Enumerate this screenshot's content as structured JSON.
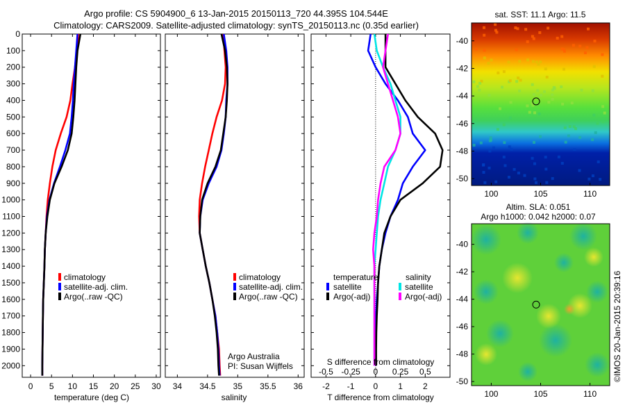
{
  "title_line1": "Argo profile: CS 5904900_6 13-Jan-2015 20150113_720 44.395S 104.544E",
  "title_line2": "Climatology: CARS2009. Satellite-adjusted climatology: synTS_20150113.nc (0.35d earlier)",
  "credit": "©IMOS 20-Jan-2015 20:39:16",
  "chart_data": [
    {
      "type": "line",
      "panel": "temperature",
      "xlabel": "temperature (deg C)",
      "ylabel": "",
      "xlim": [
        -2,
        31
      ],
      "ylim": [
        2070,
        0
      ],
      "xticks": [
        0,
        5,
        10,
        15,
        20,
        25,
        30
      ],
      "yticks": [
        0,
        100,
        200,
        300,
        400,
        500,
        600,
        700,
        800,
        900,
        1000,
        1100,
        1200,
        1300,
        1400,
        1500,
        1600,
        1700,
        1800,
        1900,
        2000
      ],
      "legend": [
        "climatology",
        "satellite-adj. clim.",
        "Argo(..raw -QC)"
      ],
      "series": [
        {
          "name": "climatology",
          "color": "#ff0000",
          "x": [
            11.4,
            11.0,
            10.6,
            10.0,
            9.5,
            8.6,
            7.2,
            6.0,
            5.2,
            4.6,
            4.1,
            3.8,
            3.6,
            3.4,
            3.3,
            3.15,
            3.0,
            2.95,
            2.9,
            2.85,
            2.8,
            2.8
          ],
          "y": [
            0,
            100,
            200,
            300,
            400,
            500,
            600,
            700,
            800,
            900,
            1000,
            1100,
            1200,
            1300,
            1400,
            1500,
            1600,
            1700,
            1800,
            1900,
            2000,
            2060
          ]
        },
        {
          "name": "satellite-adj. clim.",
          "color": "#0000ff",
          "x": [
            11.2,
            10.9,
            10.6,
            10.3,
            10.1,
            9.8,
            9.4,
            8.3,
            7.0,
            5.6,
            4.5,
            3.9,
            3.6,
            3.4,
            3.3,
            3.15,
            3.0,
            2.95,
            2.9,
            2.85,
            2.8,
            2.8
          ],
          "y": [
            0,
            100,
            200,
            300,
            400,
            500,
            600,
            700,
            800,
            900,
            1000,
            1100,
            1200,
            1300,
            1400,
            1500,
            1600,
            1700,
            1800,
            1900,
            2000,
            2060
          ]
        },
        {
          "name": "Argo(..raw -QC)",
          "color": "#000000",
          "x": [
            11.9,
            11.2,
            10.9,
            10.7,
            10.5,
            10.2,
            9.8,
            8.9,
            7.4,
            5.7,
            4.6,
            4.0,
            3.6,
            3.4,
            3.3,
            3.15,
            3.0,
            2.95,
            2.9,
            2.85,
            2.8,
            2.8
          ],
          "y": [
            0,
            100,
            200,
            300,
            400,
            500,
            600,
            700,
            800,
            900,
            1000,
            1100,
            1200,
            1300,
            1400,
            1500,
            1600,
            1700,
            1800,
            1900,
            2000,
            2060
          ]
        }
      ]
    },
    {
      "type": "line",
      "panel": "salinity",
      "xlabel": "salinity",
      "ylabel": "",
      "xlim": [
        33.8,
        36.1
      ],
      "ylim": [
        2070,
        0
      ],
      "xticks": [
        34,
        34.5,
        35,
        35.5,
        36
      ],
      "legend": [
        "climatology",
        "satellite-adj. clim.",
        "Argo(..raw -QC)"
      ],
      "annotation_line1": "Argo Australia",
      "annotation_line2": "PI: Susan Wijffels",
      "series": [
        {
          "name": "climatology",
          "color": "#ff0000",
          "x": [
            34.76,
            34.78,
            34.8,
            34.79,
            34.74,
            34.65,
            34.58,
            34.52,
            34.46,
            34.41,
            34.37,
            34.36,
            34.37,
            34.42,
            34.47,
            34.53,
            34.58,
            34.63,
            34.66,
            34.69,
            34.7,
            34.71
          ],
          "y": [
            0,
            100,
            200,
            300,
            400,
            500,
            600,
            700,
            800,
            900,
            1000,
            1100,
            1200,
            1300,
            1400,
            1500,
            1600,
            1700,
            1800,
            1900,
            2000,
            2060
          ]
        },
        {
          "name": "satellite-adj. clim.",
          "color": "#0000ff",
          "x": [
            34.77,
            34.81,
            34.83,
            34.83,
            34.81,
            34.8,
            34.77,
            34.73,
            34.65,
            34.52,
            34.42,
            34.38,
            34.37,
            34.42,
            34.47,
            34.53,
            34.58,
            34.63,
            34.66,
            34.68,
            34.69,
            34.7
          ],
          "y": [
            0,
            100,
            200,
            300,
            400,
            500,
            600,
            700,
            800,
            900,
            1000,
            1100,
            1200,
            1300,
            1400,
            1500,
            1600,
            1700,
            1800,
            1900,
            2000,
            2060
          ]
        },
        {
          "name": "Argo(..raw -QC)",
          "color": "#000000",
          "x": [
            34.73,
            34.79,
            34.82,
            34.83,
            34.82,
            34.8,
            34.76,
            34.72,
            34.63,
            34.5,
            34.41,
            34.38,
            34.37,
            34.42,
            34.47,
            34.53,
            34.58,
            34.62,
            34.65,
            34.67,
            34.68,
            34.69
          ],
          "y": [
            0,
            100,
            200,
            300,
            400,
            500,
            600,
            700,
            800,
            900,
            1000,
            1100,
            1200,
            1300,
            1400,
            1500,
            1600,
            1700,
            1800,
            1900,
            2000,
            2060
          ]
        }
      ]
    },
    {
      "type": "line",
      "panel": "differences",
      "xlabel": "T difference from climatology",
      "x2label": "S difference from climatology",
      "xlim": [
        -2.6,
        3.0
      ],
      "ylim": [
        2070,
        0
      ],
      "xticks": [
        -2,
        -1,
        0,
        1,
        2
      ],
      "xticklabels": [
        "-2",
        "-1",
        "0",
        "1",
        "2"
      ],
      "x2ticklabels": [
        "-0.5",
        "-0.25",
        "0",
        "0.25",
        "0.5"
      ],
      "legend_headers": [
        "temperature",
        "salinity"
      ],
      "legend": [
        "satellite",
        "Argo(-adj)",
        "satellite",
        "Argo(-adj)"
      ],
      "series": [
        {
          "name": "satellite",
          "group": "temperature",
          "color": "#0000ff",
          "x": [
            -0.2,
            -0.3,
            0.0,
            0.4,
            0.9,
            1.3,
            1.5,
            2.0,
            1.5,
            1.1,
            0.9,
            0.6,
            0.4,
            0.25,
            0.15,
            0.1,
            0.05,
            0.02,
            0.0,
            0.0,
            0.0
          ],
          "y": [
            0,
            100,
            200,
            300,
            400,
            500,
            600,
            700,
            800,
            900,
            1000,
            1100,
            1200,
            1300,
            1400,
            1500,
            1600,
            1700,
            1800,
            1900,
            2000
          ]
        },
        {
          "name": "Argo(-adj)",
          "group": "temperature",
          "color": "#000000",
          "x": [
            0.4,
            0.4,
            0.4,
            0.8,
            1.2,
            1.7,
            2.4,
            2.7,
            2.6,
            1.9,
            1.0,
            0.6,
            0.35,
            0.25,
            0.15,
            0.1,
            0.08,
            0.05,
            0.03,
            0.02,
            0.02
          ],
          "y": [
            0,
            100,
            200,
            300,
            400,
            500,
            600,
            700,
            800,
            900,
            1000,
            1100,
            1200,
            1300,
            1400,
            1500,
            1600,
            1700,
            1800,
            1900,
            2000
          ]
        },
        {
          "name": "satellite",
          "group": "salinity",
          "color": "#00e5e5",
          "x": [
            -0.05,
            0.05,
            0.3,
            0.6,
            0.8,
            1.0,
            1.0,
            0.8,
            0.5,
            0.35,
            0.2,
            0.1,
            0.05,
            0.0,
            -0.05,
            -0.05,
            -0.05,
            -0.05,
            -0.05,
            -0.05,
            -0.05
          ],
          "y": [
            0,
            100,
            200,
            300,
            400,
            500,
            600,
            700,
            800,
            900,
            1000,
            1100,
            1200,
            1300,
            1400,
            1500,
            1600,
            1700,
            1800,
            1900,
            2000
          ]
        },
        {
          "name": "Argo(-adj)",
          "group": "salinity",
          "color": "#ff00ff",
          "x": [
            0.5,
            0.4,
            0.3,
            0.5,
            0.7,
            0.9,
            1.0,
            0.8,
            0.35,
            0.2,
            0.1,
            0.05,
            -0.05,
            -0.1,
            -0.05,
            -0.05,
            -0.05,
            -0.05,
            -0.05,
            -0.05,
            -0.05
          ],
          "y": [
            0,
            100,
            200,
            300,
            400,
            500,
            600,
            700,
            800,
            900,
            1000,
            1100,
            1200,
            1300,
            1400,
            1500,
            1600,
            1700,
            1800,
            1900,
            2000
          ]
        }
      ]
    },
    {
      "type": "heatmap",
      "panel": "sst-map",
      "title": "sat. SST: 11.1  Argo: 11.5",
      "xlim": [
        98,
        112
      ],
      "ylim": [
        -50.5,
        -38.7
      ],
      "xticks": [
        100,
        105,
        110
      ],
      "yticks": [
        -40,
        -42,
        -44,
        -46,
        -48,
        -50
      ],
      "marker": {
        "lon": 104.544,
        "lat": -44.395
      }
    },
    {
      "type": "heatmap",
      "panel": "sla-map",
      "title_line1": "Altim. SLA: 0.051",
      "title_line2": "Argo h1000: 0.042 h2000: 0.07",
      "xlim": [
        98,
        112
      ],
      "ylim": [
        -50.3,
        -38.5
      ],
      "xticks": [
        100,
        105,
        110
      ],
      "yticks": [
        -40,
        -42,
        -44,
        -46,
        -48,
        -50
      ],
      "marker": {
        "lon": 104.544,
        "lat": -44.395
      }
    }
  ]
}
